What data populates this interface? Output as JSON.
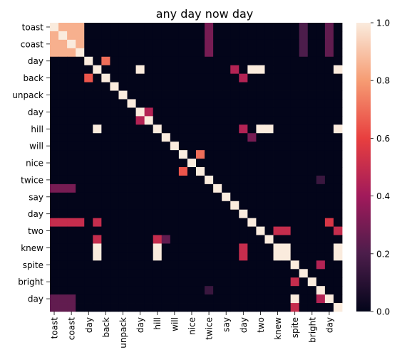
{
  "chart_data": {
    "type": "heatmap",
    "title": "any day now day",
    "xlabel": "",
    "ylabel": "",
    "colormap": "rocket",
    "vmin": 0.0,
    "vmax": 1.0,
    "colorbar_ticks": [
      "0.0",
      "0.2",
      "0.4",
      "0.6",
      "0.8",
      "1.0"
    ],
    "colorbar_tick_values": [
      0.0,
      0.2,
      0.4,
      0.6,
      0.8,
      1.0
    ],
    "colormap_stops": [
      "#03051a",
      "#4c1d4b",
      "#a11a5b",
      "#e83f3f",
      "#f69c73",
      "#faebdd"
    ],
    "tokens": [
      "toast",
      "toast",
      "coast",
      "coast",
      "day",
      "day",
      "back",
      "back",
      "unpack",
      "unpack",
      "day",
      "day",
      "hill",
      "hill",
      "will",
      "will",
      "nice",
      "nice",
      "twice",
      "twice",
      "say",
      "say",
      "day",
      "day",
      "two",
      "two",
      "knew",
      "knew",
      "spite",
      "spite",
      "bright",
      "bright",
      "day",
      "day"
    ],
    "tick_labels": [
      "toast",
      "coast",
      "day",
      "back",
      "unpack",
      "day",
      "hill",
      "will",
      "nice",
      "twice",
      "say",
      "day",
      "two",
      "knew",
      "spite",
      "bright",
      "day"
    ],
    "values": [
      [
        1,
        0.85,
        0.85,
        0.85,
        0,
        0,
        0,
        0,
        0,
        0,
        0,
        0,
        0,
        0,
        0,
        0,
        0,
        0,
        0.3,
        0,
        0,
        0,
        0,
        0,
        0,
        0,
        0,
        0,
        0,
        0.2,
        0,
        0,
        0.25,
        0
      ],
      [
        0.85,
        1,
        0.85,
        0.85,
        0,
        0,
        0,
        0,
        0,
        0,
        0,
        0,
        0,
        0,
        0,
        0,
        0,
        0,
        0.3,
        0,
        0,
        0,
        0,
        0,
        0,
        0,
        0,
        0,
        0,
        0.2,
        0,
        0,
        0.25,
        0
      ],
      [
        0.85,
        0.85,
        1,
        0.85,
        0,
        0,
        0,
        0,
        0,
        0,
        0,
        0,
        0,
        0,
        0,
        0,
        0,
        0,
        0.3,
        0,
        0,
        0,
        0,
        0,
        0,
        0,
        0,
        0,
        0,
        0.2,
        0,
        0,
        0.25,
        0
      ],
      [
        0.85,
        0.85,
        0.85,
        1,
        0,
        0,
        0,
        0,
        0,
        0,
        0,
        0,
        0,
        0,
        0,
        0,
        0,
        0,
        0.3,
        0,
        0,
        0,
        0,
        0,
        0,
        0,
        0,
        0,
        0,
        0.2,
        0,
        0,
        0.25,
        0
      ],
      [
        0,
        0,
        0,
        0,
        1,
        0,
        0.7,
        0,
        0,
        0,
        0,
        0,
        0,
        0,
        0,
        0,
        0,
        0,
        0,
        0,
        0,
        0,
        0,
        0,
        0,
        0,
        0,
        0,
        0,
        0,
        0,
        0,
        0,
        0
      ],
      [
        0,
        0,
        0,
        0,
        0,
        1,
        0,
        0,
        0,
        0,
        1,
        0,
        0,
        0,
        0,
        0,
        0,
        0,
        0,
        0,
        0,
        0.45,
        0,
        1,
        1,
        0,
        0,
        0,
        0,
        0,
        0,
        0,
        0,
        1
      ],
      [
        0,
        0,
        0,
        0,
        0.65,
        0,
        1,
        0,
        0,
        0,
        0,
        0,
        0,
        0,
        0,
        0,
        0,
        0,
        0,
        0,
        0,
        0,
        0.45,
        0,
        0,
        0,
        0,
        0,
        0,
        0,
        0,
        0,
        0,
        0
      ],
      [
        0,
        0,
        0,
        0,
        0,
        0,
        0,
        1,
        0,
        0,
        0,
        0,
        0,
        0,
        0,
        0,
        0,
        0,
        0,
        0,
        0,
        0,
        0,
        0,
        0,
        0,
        0,
        0,
        0,
        0,
        0,
        0,
        0,
        0
      ],
      [
        0,
        0,
        0,
        0,
        0,
        0,
        0,
        0,
        1,
        0,
        0,
        0,
        0,
        0,
        0,
        0,
        0,
        0,
        0,
        0,
        0,
        0,
        0,
        0,
        0,
        0,
        0,
        0,
        0,
        0,
        0,
        0,
        0,
        0
      ],
      [
        0,
        0,
        0,
        0,
        0,
        0,
        0,
        0,
        0,
        1,
        0,
        0,
        0,
        0,
        0,
        0,
        0,
        0,
        0,
        0,
        0,
        0,
        0,
        0,
        0,
        0,
        0,
        0,
        0,
        0,
        0,
        0,
        0,
        0
      ],
      [
        0,
        0,
        0,
        0,
        0,
        0,
        0,
        0,
        0,
        0,
        1,
        0.45,
        0,
        0,
        0,
        0,
        0,
        0,
        0,
        0,
        0,
        0,
        0,
        0,
        0,
        0,
        0,
        0,
        0,
        0,
        0,
        0,
        0,
        0
      ],
      [
        0,
        0,
        0,
        0,
        0,
        0,
        0,
        0,
        0,
        0,
        0.45,
        1,
        0,
        0,
        0,
        0,
        0,
        0,
        0,
        0,
        0,
        0,
        0,
        0,
        0,
        0,
        0,
        0,
        0,
        0,
        0,
        0,
        0,
        0
      ],
      [
        0,
        0,
        0,
        0,
        0,
        1,
        0,
        0,
        0,
        0,
        0,
        0,
        1,
        0,
        0,
        0,
        0,
        0,
        0,
        0,
        0,
        0,
        0.45,
        0,
        1,
        1,
        0,
        0,
        0,
        0,
        0,
        0,
        0,
        1
      ],
      [
        0,
        0,
        0,
        0,
        0,
        0,
        0,
        0,
        0,
        0,
        0,
        0,
        0,
        1,
        0,
        0,
        0,
        0,
        0,
        0,
        0,
        0,
        0,
        0.3,
        0,
        0,
        0,
        0,
        0,
        0,
        0,
        0,
        0,
        0
      ],
      [
        0,
        0,
        0,
        0,
        0,
        0,
        0,
        0,
        0,
        0,
        0,
        0,
        0,
        0,
        1,
        0,
        0,
        0,
        0,
        0,
        0,
        0,
        0,
        0,
        0,
        0,
        0,
        0,
        0,
        0,
        0,
        0,
        0,
        0
      ],
      [
        0,
        0,
        0,
        0,
        0,
        0,
        0,
        0,
        0,
        0,
        0,
        0,
        0,
        0,
        0,
        1,
        0,
        0.7,
        0,
        0,
        0,
        0,
        0,
        0,
        0,
        0,
        0,
        0,
        0,
        0,
        0,
        0,
        0,
        0
      ],
      [
        0,
        0,
        0,
        0,
        0,
        0,
        0,
        0,
        0,
        0,
        0,
        0,
        0,
        0,
        0,
        0,
        1,
        0,
        0,
        0,
        0,
        0,
        0,
        0,
        0,
        0,
        0,
        0,
        0,
        0,
        0,
        0,
        0,
        0
      ],
      [
        0,
        0,
        0,
        0,
        0,
        0,
        0,
        0,
        0,
        0,
        0,
        0,
        0,
        0,
        0,
        0.65,
        0,
        1,
        0,
        0,
        0,
        0,
        0,
        0,
        0,
        0,
        0,
        0,
        0,
        0,
        0,
        0,
        0,
        0
      ],
      [
        0,
        0,
        0,
        0,
        0,
        0,
        0,
        0,
        0,
        0,
        0,
        0,
        0,
        0,
        0,
        0,
        0,
        0,
        1,
        0,
        0,
        0,
        0,
        0,
        0,
        0,
        0,
        0,
        0,
        0,
        0,
        0.15,
        0,
        0
      ],
      [
        0.3,
        0.3,
        0.3,
        0,
        0,
        0,
        0,
        0,
        0,
        0,
        0,
        0,
        0,
        0,
        0,
        0,
        0,
        0,
        0,
        1,
        0,
        0,
        0,
        0,
        0,
        0,
        0,
        0,
        0,
        0,
        0,
        0,
        0,
        0
      ],
      [
        0,
        0,
        0,
        0,
        0,
        0,
        0,
        0,
        0,
        0,
        0,
        0,
        0,
        0,
        0,
        0,
        0,
        0,
        0,
        0,
        1,
        0,
        0,
        0,
        0,
        0,
        0,
        0,
        0,
        0,
        0,
        0,
        0,
        0
      ],
      [
        0,
        0,
        0,
        0,
        0,
        0,
        0,
        0,
        0,
        0,
        0,
        0,
        0,
        0,
        0,
        0,
        0,
        0,
        0,
        0,
        0,
        1,
        0,
        0,
        0,
        0,
        0,
        0,
        0,
        0,
        0,
        0,
        0,
        0
      ],
      [
        0,
        0,
        0,
        0,
        0,
        0,
        0,
        0,
        0,
        0,
        0,
        0,
        0,
        0,
        0,
        0,
        0,
        0,
        0,
        0,
        0,
        0,
        1,
        0,
        0,
        0,
        0,
        0,
        0,
        0,
        0,
        0,
        0,
        0
      ],
      [
        0.5,
        0.5,
        0.5,
        0.5,
        0,
        0.5,
        0,
        0,
        0,
        0,
        0,
        0,
        0,
        0,
        0,
        0,
        0,
        0,
        0,
        0,
        0,
        0,
        0,
        1,
        0,
        0,
        0,
        0,
        0,
        0,
        0,
        0,
        0.55,
        0
      ],
      [
        0,
        0,
        0,
        0,
        0,
        0,
        0,
        0,
        0,
        0,
        0,
        0,
        0,
        0,
        0,
        0,
        0,
        0,
        0,
        0,
        0,
        0,
        0,
        0,
        1,
        0,
        0.5,
        0.5,
        0,
        0,
        0,
        0,
        0,
        0.5
      ],
      [
        0,
        0,
        0,
        0,
        0,
        0.5,
        0,
        0,
        0,
        0,
        0,
        0,
        0.5,
        0.25,
        0,
        0,
        0,
        0,
        0,
        0,
        0,
        0,
        0,
        0,
        0,
        1,
        0,
        0,
        0,
        0,
        0,
        0,
        0,
        0
      ],
      [
        0,
        0,
        0,
        0,
        0,
        1,
        0,
        0,
        0,
        0,
        0,
        0,
        1,
        0,
        0,
        0,
        0,
        0,
        0,
        0,
        0,
        0,
        0.5,
        0,
        0,
        0,
        1,
        1,
        0,
        0,
        0,
        0,
        0,
        1
      ],
      [
        0,
        0,
        0,
        0,
        0,
        1,
        0,
        0,
        0,
        0,
        0,
        0,
        1,
        0,
        0,
        0,
        0,
        0,
        0,
        0,
        0,
        0,
        0.5,
        0,
        0,
        0,
        1,
        1,
        0,
        0,
        0,
        0,
        0,
        1
      ],
      [
        0,
        0,
        0,
        0,
        0,
        0,
        0,
        0,
        0,
        0,
        0,
        0,
        0,
        0,
        0,
        0,
        0,
        0,
        0,
        0,
        0,
        0,
        0,
        0,
        0,
        0,
        0,
        0,
        1,
        0,
        0,
        0.45,
        0,
        0
      ],
      [
        0,
        0,
        0,
        0,
        0,
        0,
        0,
        0,
        0,
        0,
        0,
        0,
        0,
        0,
        0,
        0,
        0,
        0,
        0,
        0,
        0,
        0,
        0,
        0,
        0,
        0,
        0,
        0,
        0,
        1,
        0,
        0,
        0,
        0
      ],
      [
        0,
        0,
        0,
        0,
        0,
        0,
        0,
        0,
        0,
        0,
        0,
        0,
        0,
        0,
        0,
        0,
        0,
        0,
        0,
        0,
        0,
        0,
        0,
        0,
        0,
        0,
        0,
        0,
        0.5,
        0,
        1,
        0,
        0,
        0
      ],
      [
        0,
        0,
        0,
        0,
        0,
        0,
        0,
        0,
        0,
        0,
        0,
        0,
        0,
        0,
        0,
        0,
        0,
        0,
        0.15,
        0,
        0,
        0,
        0,
        0,
        0,
        0,
        0,
        0,
        0,
        0,
        0,
        1,
        0,
        0
      ],
      [
        0.25,
        0.25,
        0.25,
        0,
        0,
        0,
        0,
        0,
        0,
        0,
        0,
        0,
        0,
        0,
        0,
        0,
        0,
        0,
        0,
        0,
        0,
        0,
        0,
        0,
        0,
        0,
        0,
        0,
        1,
        0,
        0,
        0.45,
        1,
        0
      ],
      [
        0.25,
        0.25,
        0.25,
        0,
        0,
        0,
        0,
        0,
        0,
        0,
        0,
        0,
        0,
        0,
        0,
        0,
        0,
        0,
        0,
        0,
        0,
        0,
        0,
        0,
        0,
        0,
        0,
        0,
        0.5,
        0,
        0,
        0,
        0,
        1
      ]
    ]
  }
}
